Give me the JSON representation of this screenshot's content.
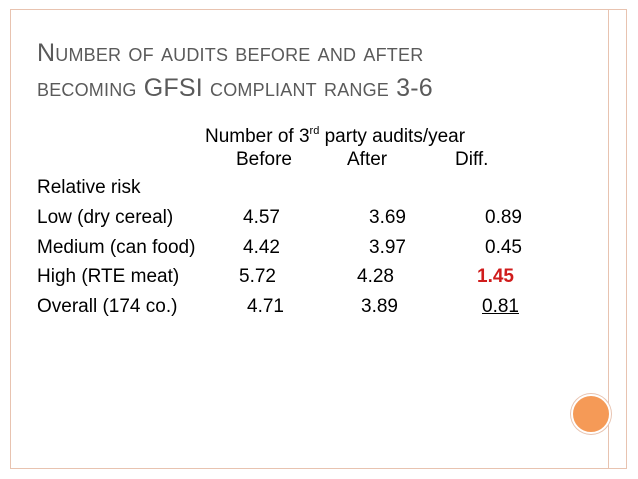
{
  "title": {
    "line1": "Number of audits before and after",
    "line2": "becoming GFSI compliant range 3-6"
  },
  "table": {
    "header": {
      "main_prefix": "Number of 3",
      "main_sup": "rd",
      "main_suffix": " party audits/year",
      "before": "Before",
      "after": "After",
      "diff": "Diff."
    },
    "section_label": "Relative risk",
    "rows": [
      {
        "label": "Low (dry cereal)",
        "before": "4.57",
        "after": "3.69",
        "diff": "0.89"
      },
      {
        "label": "Medium (can food)",
        "before": "4.42",
        "after": "3.97",
        "diff": "0.45"
      },
      {
        "label": "High (RTE meat)",
        "before": "5.72",
        "after": "4.28",
        "diff": "1.45"
      },
      {
        "label": "Overall (174 co.)",
        "before": "4.71",
        "after": "3.89",
        "diff": "0.81"
      }
    ]
  },
  "colors": {
    "title": "#5a5a5a",
    "highlight": "#d01c1c",
    "accent_dot": "#f59a57",
    "frame": "#e8c3b0"
  }
}
